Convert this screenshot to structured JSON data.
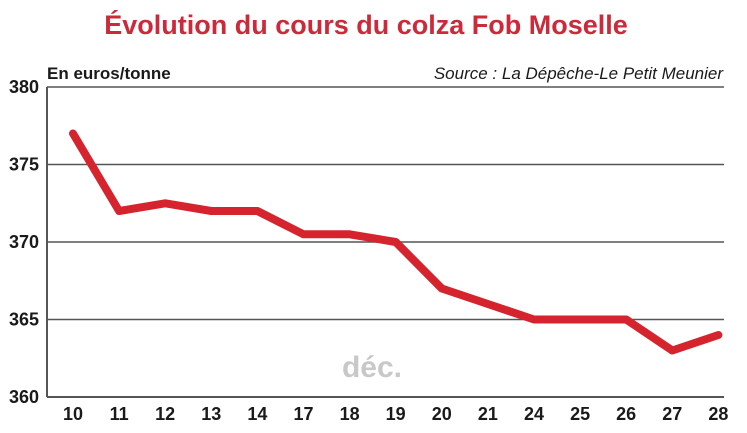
{
  "chart_data": {
    "type": "line",
    "title": "Évolution du cours du colza Fob Moselle",
    "unit_label": "En euros/tonne",
    "source": "Source : La Dépêche-Le Petit Meunier",
    "month_label": "déc.",
    "categories": [
      "10",
      "11",
      "12",
      "13",
      "14",
      "17",
      "18",
      "19",
      "20",
      "21",
      "24",
      "25",
      "26",
      "27",
      "28"
    ],
    "values": [
      377,
      372,
      372.5,
      372,
      372,
      370.5,
      370.5,
      370,
      367,
      366,
      365,
      365,
      365,
      363,
      364
    ],
    "ylim": [
      360,
      380
    ],
    "yticks": [
      "360",
      "365",
      "370",
      "375",
      "380"
    ],
    "grid": true,
    "line_color": "#d6242f",
    "grid_color": "#555555",
    "title_color": "#cc2a3a"
  }
}
